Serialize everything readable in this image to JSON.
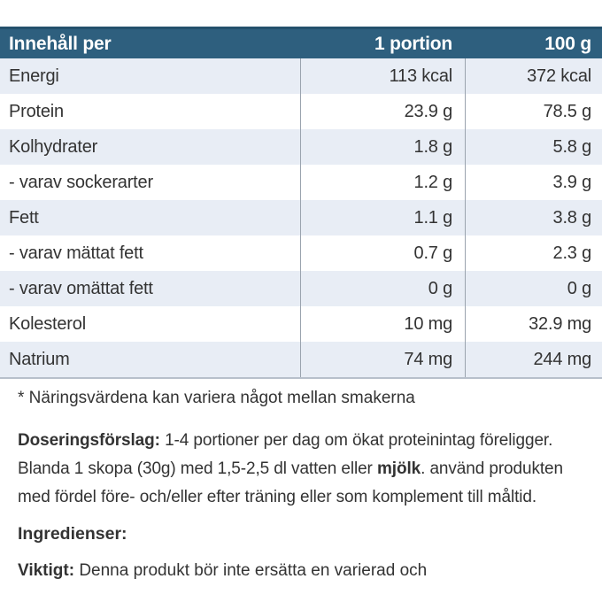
{
  "table": {
    "header": {
      "col1": "Innehåll per",
      "col2": "1 portion",
      "col3": "100 g"
    },
    "rows": [
      {
        "label": "Energi",
        "portion": "113 kcal",
        "per100": "372 kcal"
      },
      {
        "label": "Protein",
        "portion": "23.9 g",
        "per100": "78.5 g"
      },
      {
        "label": "Kolhydrater",
        "portion": "1.8 g",
        "per100": "5.8 g"
      },
      {
        "label": "- varav sockerarter",
        "portion": "1.2 g",
        "per100": "3.9 g"
      },
      {
        "label": "Fett",
        "portion": "1.1 g",
        "per100": "3.8 g"
      },
      {
        "label": "- varav mättat fett",
        "portion": "0.7 g",
        "per100": "2.3 g"
      },
      {
        "label": "- varav omättat fett",
        "portion": "0 g",
        "per100": "0 g"
      },
      {
        "label": "Kolesterol",
        "portion": "10 mg",
        "per100": "32.9 mg"
      },
      {
        "label": "Natrium",
        "portion": "74 mg",
        "per100": "244 mg"
      }
    ]
  },
  "paragraphs": {
    "note": "* Näringsvärdena kan variera något mellan smakerna",
    "dosering": {
      "bold_lead": "Doseringsförslag:",
      "text_a": " 1-4 portioner per dag om ökat proteinintag föreligger. Blanda 1 skopa (30g) med 1,5-2,5 dl vatten eller ",
      "bold_mjolk": "mjölk",
      "text_b": ". använd produkten med fördel före- och/eller efter träning eller som komplement till måltid."
    },
    "ingredienser": "Ingredienser:",
    "viktigt": {
      "bold_lead": "Viktigt:",
      "text": " Denna produkt bör inte ersätta en varierad och"
    }
  },
  "colors": {
    "header_bg": "#2e5f7e",
    "header_top_border": "#24506c",
    "header_text": "#ffffff",
    "row_alt_bg": "#e8edf5",
    "row_bg": "#ffffff",
    "column_divider": "#9aa3ae",
    "table_bottom_border": "#b7c0cb",
    "body_text": "#333333"
  }
}
